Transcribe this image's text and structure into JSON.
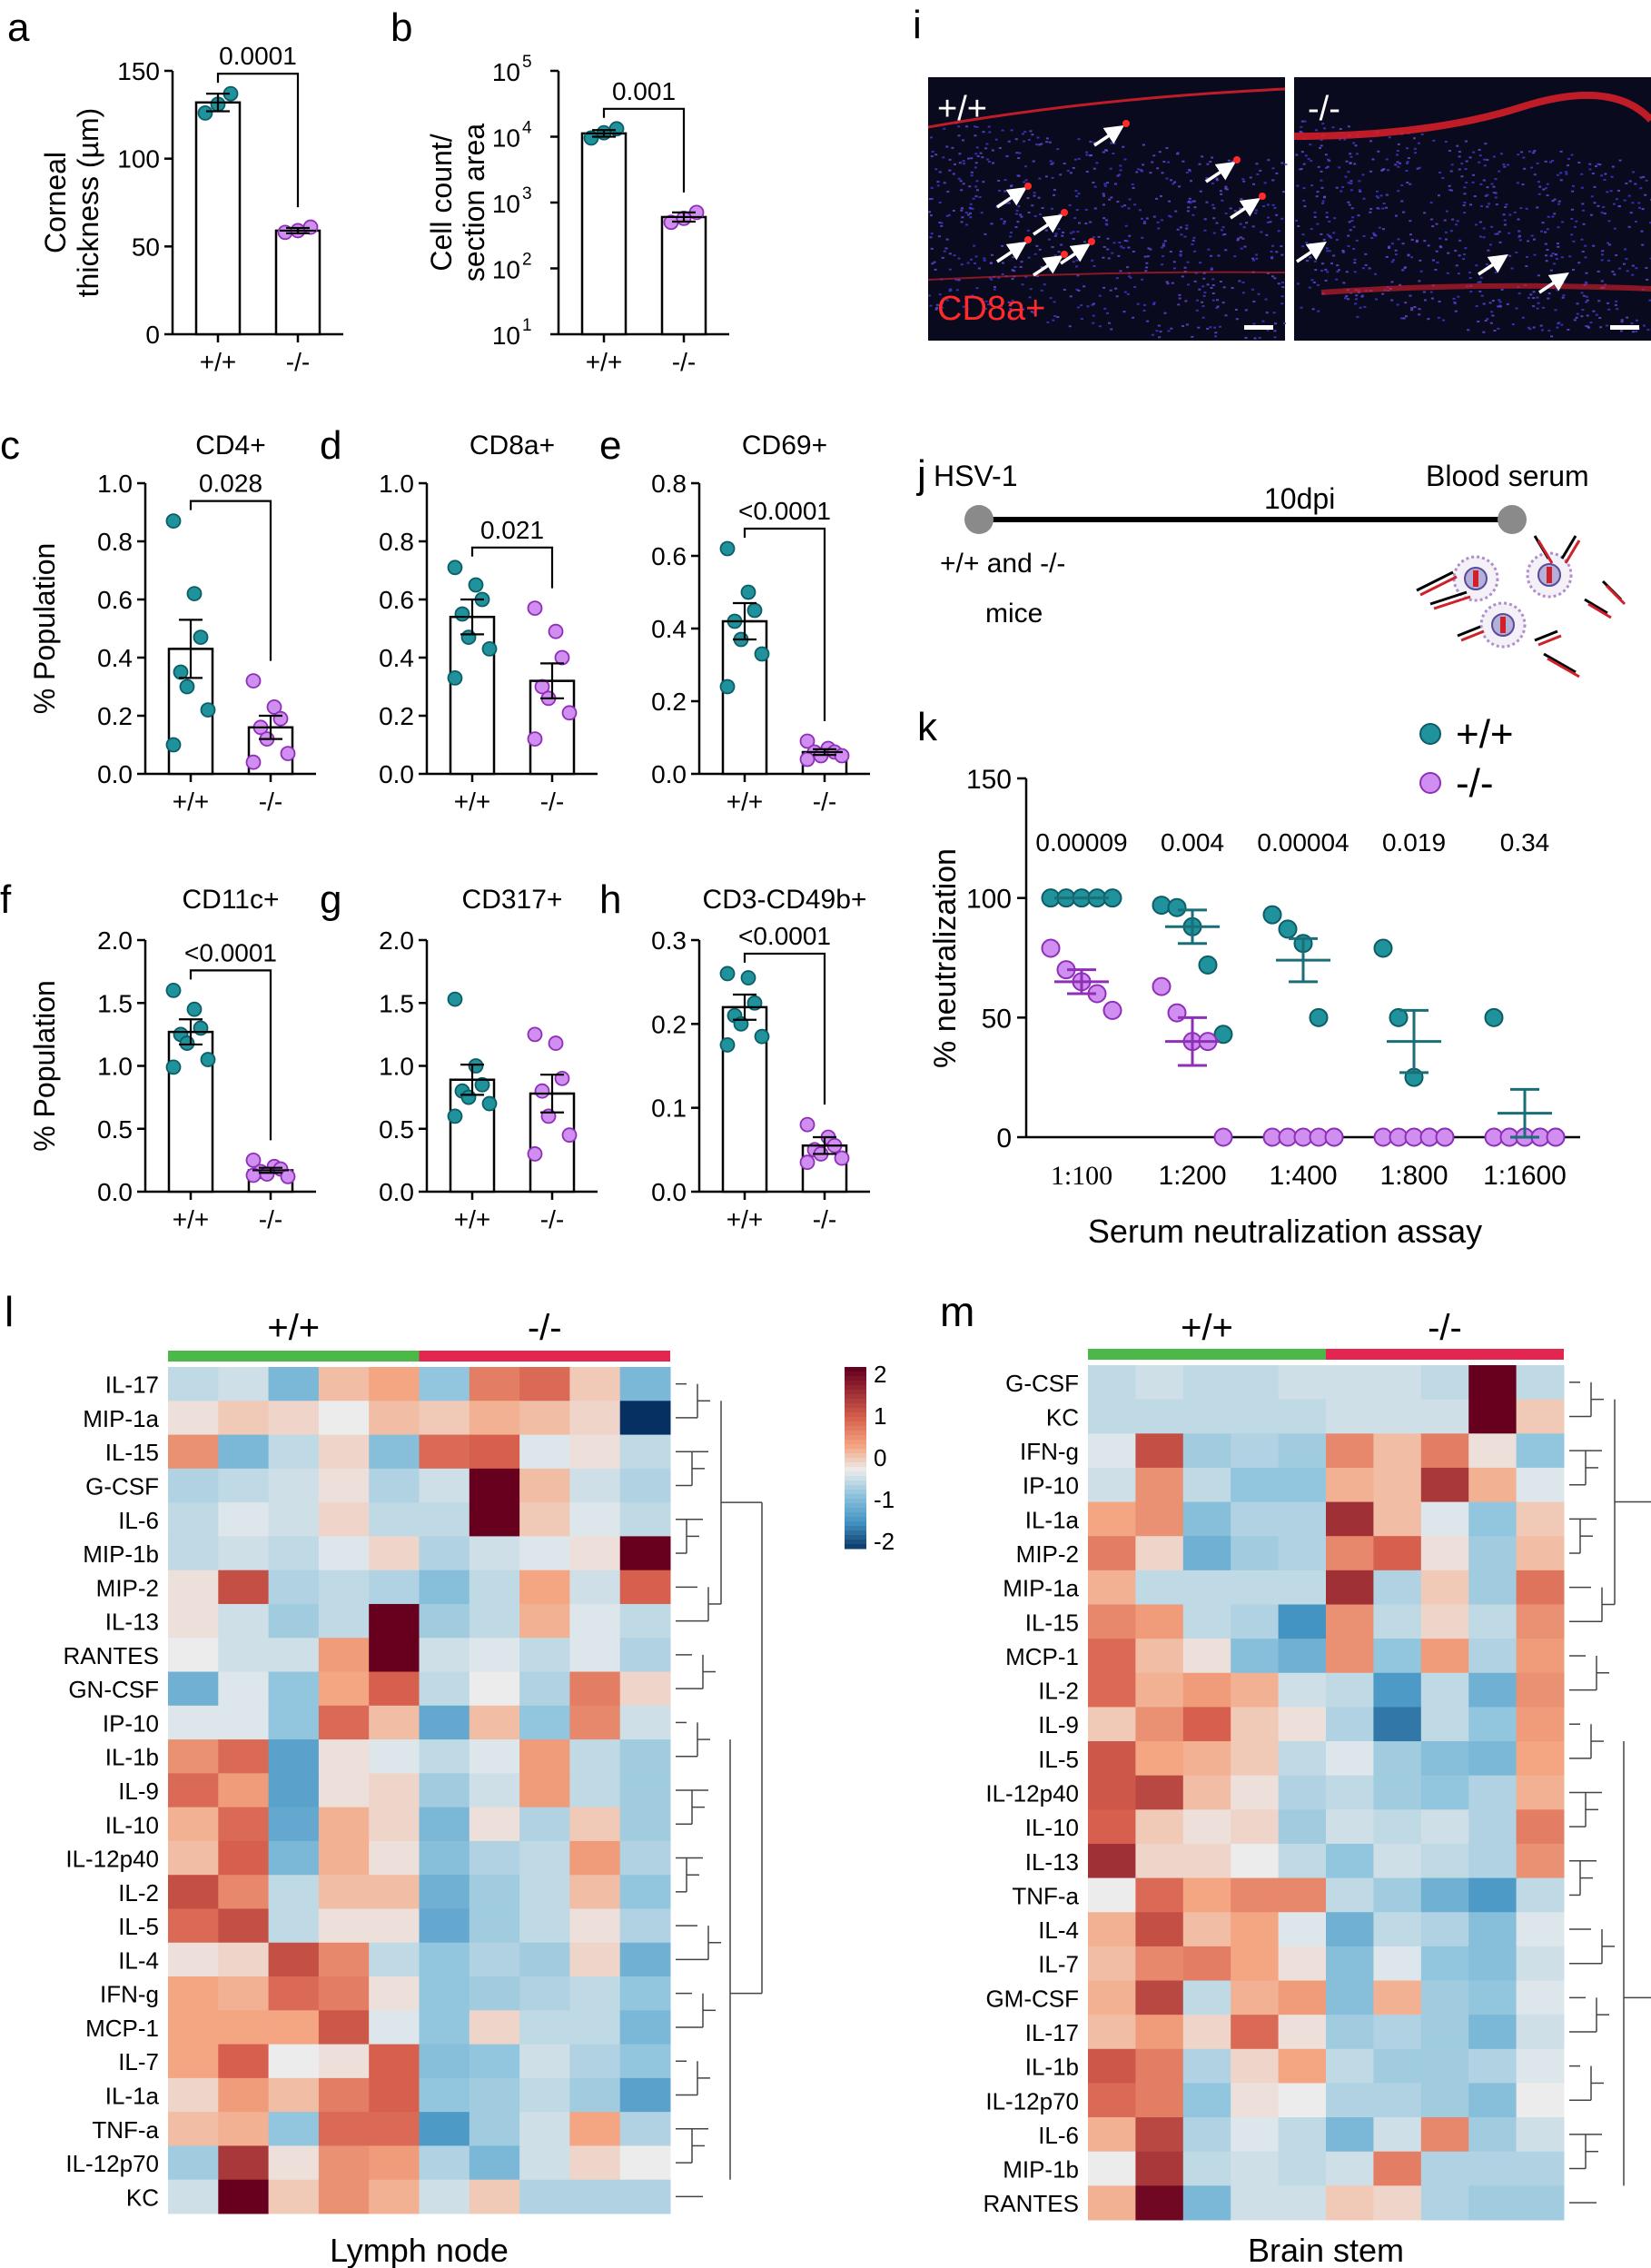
{
  "colors": {
    "wt": "#20929c",
    "wt_edge": "#0d5d66",
    "ko": "#cf8ef0",
    "ko_edge": "#8f2fb8",
    "green_bar": "#4cb848",
    "red_bar": "#e3264f"
  },
  "bar_panels": [
    {
      "letter": "a",
      "title": "",
      "ylabel": [
        "Corneal",
        "thickness (µm)"
      ],
      "ylim": [
        0,
        150
      ],
      "yticks": [
        "0",
        "50",
        "100",
        "150"
      ],
      "log": false,
      "categories": [
        "+/+",
        "-/-"
      ],
      "means": [
        132,
        59
      ],
      "sem": [
        5,
        1.5
      ],
      "points": [
        [
          126,
          131,
          137
        ],
        [
          58,
          59,
          61
        ]
      ],
      "p": "0.0001"
    },
    {
      "letter": "b",
      "title": "",
      "ylabel": [
        "Cell count/",
        "section area"
      ],
      "ylim": [
        1,
        5
      ],
      "yticks": [
        "10",
        "10",
        "10",
        "10",
        "10"
      ],
      "ytick_exp": [
        "1",
        "2",
        "3",
        "4",
        "5"
      ],
      "log": true,
      "categories": [
        "+/+",
        "-/-"
      ],
      "means": [
        4.05,
        2.78
      ],
      "sem": [
        0.05,
        0.07
      ],
      "points": [
        [
          3.98,
          4.06,
          4.12
        ],
        [
          2.7,
          2.76,
          2.85
        ]
      ],
      "p": "0.001"
    },
    {
      "letter": "c",
      "title": "CD4+",
      "ylabel": [
        "% Population"
      ],
      "ylim": [
        0,
        1.0
      ],
      "yticks": [
        "0.0",
        "0.2",
        "0.4",
        "0.6",
        "0.8",
        "1.0"
      ],
      "log": false,
      "categories": [
        "+/+",
        "-/-"
      ],
      "means": [
        0.43,
        0.16
      ],
      "sem": [
        0.1,
        0.04
      ],
      "points": [
        [
          0.87,
          0.62,
          0.47,
          0.35,
          0.3,
          0.22,
          0.1
        ],
        [
          0.32,
          0.23,
          0.19,
          0.16,
          0.12,
          0.07,
          0.04
        ]
      ],
      "p": "0.028"
    },
    {
      "letter": "d",
      "title": "CD8a+",
      "ylabel": [],
      "ylim": [
        0,
        1.0
      ],
      "yticks": [
        "0.0",
        "0.2",
        "0.4",
        "0.6",
        "0.8",
        "1.0"
      ],
      "log": false,
      "categories": [
        "+/+",
        "-/-"
      ],
      "means": [
        0.54,
        0.32
      ],
      "sem": [
        0.06,
        0.06
      ],
      "points": [
        [
          0.71,
          0.65,
          0.6,
          0.55,
          0.47,
          0.43,
          0.33
        ],
        [
          0.57,
          0.49,
          0.4,
          0.3,
          0.26,
          0.21,
          0.12
        ]
      ],
      "p": "0.021"
    },
    {
      "letter": "e",
      "title": "CD69+",
      "ylabel": [],
      "ylim": [
        0,
        0.8
      ],
      "yticks": [
        "0.0",
        "0.2",
        "0.4",
        "0.6",
        "0.8"
      ],
      "log": false,
      "categories": [
        "+/+",
        "-/-"
      ],
      "means": [
        0.42,
        0.06
      ],
      "sem": [
        0.05,
        0.008
      ],
      "points": [
        [
          0.62,
          0.5,
          0.45,
          0.42,
          0.37,
          0.33,
          0.24
        ],
        [
          0.09,
          0.07,
          0.06,
          0.06,
          0.05,
          0.05,
          0.04
        ]
      ],
      "p": "<0.0001"
    },
    {
      "letter": "f",
      "title": "CD11c+",
      "ylabel": [
        "% Population"
      ],
      "ylim": [
        0,
        2.0
      ],
      "yticks": [
        "0.0",
        "0.5",
        "1.0",
        "1.5",
        "2.0"
      ],
      "log": false,
      "categories": [
        "+/+",
        "-/-"
      ],
      "means": [
        1.27,
        0.17
      ],
      "sem": [
        0.1,
        0.02
      ],
      "points": [
        [
          1.6,
          1.45,
          1.3,
          1.25,
          1.18,
          1.05,
          0.99
        ],
        [
          0.25,
          0.2,
          0.18,
          0.16,
          0.14,
          0.12,
          0.13
        ]
      ],
      "p": "<0.0001"
    },
    {
      "letter": "g",
      "title": "CD317+",
      "ylabel": [],
      "ylim": [
        0,
        2.0
      ],
      "yticks": [
        "0.0",
        "0.5",
        "1.0",
        "1.5",
        "2.0"
      ],
      "log": false,
      "categories": [
        "+/+",
        "-/-"
      ],
      "means": [
        0.89,
        0.78
      ],
      "sem": [
        0.12,
        0.15
      ],
      "points": [
        [
          1.53,
          1.0,
          0.85,
          0.8,
          0.75,
          0.7,
          0.6
        ],
        [
          1.25,
          1.18,
          0.9,
          0.8,
          0.6,
          0.45,
          0.3
        ]
      ],
      "p": ""
    },
    {
      "letter": "h",
      "title": "CD3-CD49b+",
      "ylabel": [],
      "ylim": [
        0,
        0.3
      ],
      "yticks": [
        "0.0",
        "0.1",
        "0.2",
        "0.3"
      ],
      "log": false,
      "categories": [
        "+/+",
        "-/-"
      ],
      "means": [
        0.22,
        0.055
      ],
      "sem": [
        0.015,
        0.01
      ],
      "points": [
        [
          0.26,
          0.255,
          0.225,
          0.21,
          0.2,
          0.185,
          0.175
        ],
        [
          0.08,
          0.065,
          0.055,
          0.05,
          0.045,
          0.04,
          0.035
        ]
      ],
      "p": "<0.0001"
    }
  ],
  "panel_i": {
    "letter": "i",
    "left_label": "+/+",
    "right_label": "-/-",
    "stain_label": "CD8a+"
  },
  "panel_j": {
    "letter": "j",
    "start": "HSV-1",
    "mid": "10dpi",
    "end": "Blood serum",
    "group1": "+/+ and -/-",
    "group2": "mice"
  },
  "chart_data": {
    "type": "scatter",
    "letter": "k",
    "title": "",
    "xlabel": "Serum neutralization assay",
    "ylabel": "% neutralization",
    "ylim": [
      0,
      150
    ],
    "yticks": [
      "0",
      "50",
      "100",
      "150"
    ],
    "categories": [
      "1:100",
      "1:200",
      "1:400",
      "1:800",
      "1:1600"
    ],
    "p_values": [
      "0.00009",
      "0.004",
      "0.00004",
      "0.019",
      "0.34"
    ],
    "legend": [
      "+/+",
      "-/-"
    ],
    "series": [
      {
        "name": "+/+",
        "means": [
          100,
          88,
          74,
          40,
          10
        ],
        "sem": [
          0,
          7,
          9,
          13,
          10
        ],
        "points": [
          [
            100,
            100,
            100,
            100,
            100
          ],
          [
            97,
            96,
            88,
            72,
            43
          ],
          [
            93,
            87,
            81,
            50,
            0
          ],
          [
            79,
            50,
            25,
            0,
            0
          ],
          [
            50,
            0,
            0,
            0,
            0
          ]
        ]
      },
      {
        "name": "-/-",
        "means": [
          65,
          40,
          0,
          0,
          0
        ],
        "sem": [
          5,
          10,
          0,
          0,
          0
        ],
        "points": [
          [
            79,
            70,
            65,
            60,
            53
          ],
          [
            63,
            52,
            40,
            40,
            0
          ],
          [
            0,
            0,
            0,
            0,
            0
          ],
          [
            0,
            0,
            0,
            0,
            0
          ],
          [
            0,
            0,
            0,
            0,
            0
          ]
        ]
      }
    ]
  },
  "heatmap_l": {
    "letter": "l",
    "group1": "+/+",
    "group2": "-/-",
    "xlabel": "Lymph node",
    "colorbar_ticks": [
      "2",
      "1",
      "0",
      "-1",
      "-2"
    ],
    "rows": [
      "IL-17",
      "MIP-1a",
      "IL-15",
      "G-CSF",
      "IL-6",
      "MIP-1b",
      "MIP-2",
      "IL-13",
      "RANTES",
      "GN-CSF",
      "IP-10",
      "IL-1b",
      "IL-9",
      "IL-10",
      "IL-12p40",
      "IL-2",
      "IL-5",
      "IL-4",
      "IFN-g",
      "MCP-1",
      "IL-7",
      "IL-1a",
      "TNF-a",
      "IL-12p70",
      "KC"
    ],
    "values": [
      [
        -0.3,
        -0.2,
        -0.8,
        0.4,
        0.6,
        -0.6,
        1.0,
        1.2,
        0.3,
        -0.8
      ],
      [
        0.1,
        0.3,
        0.2,
        0.0,
        0.4,
        0.3,
        0.5,
        0.4,
        0.2,
        -2.0
      ],
      [
        0.8,
        -0.8,
        -0.3,
        0.2,
        -0.7,
        1.2,
        1.3,
        -0.1,
        0.1,
        -0.3
      ],
      [
        -0.4,
        -0.3,
        -0.2,
        0.1,
        -0.4,
        -0.2,
        2.5,
        0.4,
        -0.2,
        -0.4
      ],
      [
        -0.3,
        -0.1,
        -0.2,
        0.2,
        -0.3,
        -0.3,
        2.5,
        0.3,
        -0.1,
        -0.3
      ],
      [
        -0.3,
        -0.2,
        -0.3,
        -0.1,
        0.2,
        -0.4,
        -0.2,
        -0.1,
        0.1,
        2.5
      ],
      [
        0.1,
        1.5,
        -0.4,
        -0.3,
        -0.4,
        -0.7,
        -0.3,
        0.6,
        -0.2,
        1.3
      ],
      [
        0.1,
        -0.2,
        -0.5,
        -0.3,
        2.5,
        -0.5,
        -0.3,
        0.5,
        -0.1,
        -0.3
      ],
      [
        0.0,
        -0.2,
        -0.2,
        0.7,
        2.5,
        -0.2,
        -0.1,
        -0.3,
        -0.1,
        -0.4
      ],
      [
        -0.9,
        -0.1,
        -0.6,
        0.6,
        1.3,
        -0.3,
        0.0,
        -0.4,
        1.0,
        0.2
      ],
      [
        -0.1,
        -0.1,
        -0.6,
        1.2,
        0.4,
        -1.0,
        0.4,
        -0.6,
        0.9,
        -0.2
      ],
      [
        0.8,
        1.2,
        -1.1,
        0.1,
        -0.1,
        -0.3,
        -0.1,
        0.7,
        -0.3,
        -0.5
      ],
      [
        1.2,
        0.7,
        -1.1,
        0.1,
        0.2,
        -0.5,
        -0.2,
        0.7,
        -0.3,
        -0.5
      ],
      [
        0.5,
        1.2,
        -1.0,
        0.5,
        0.2,
        -0.8,
        0.1,
        -0.4,
        0.3,
        -0.5
      ],
      [
        0.4,
        1.3,
        -0.8,
        0.5,
        0.1,
        -0.7,
        -0.4,
        -0.3,
        0.7,
        -0.4
      ],
      [
        1.5,
        0.9,
        -0.3,
        0.4,
        0.4,
        -0.9,
        -0.5,
        -0.3,
        0.4,
        -0.6
      ],
      [
        1.2,
        1.5,
        -0.3,
        0.1,
        0.1,
        -1.0,
        -0.5,
        -0.3,
        0.1,
        -0.4
      ],
      [
        0.1,
        0.2,
        1.5,
        0.9,
        -0.3,
        -0.6,
        -0.4,
        -0.5,
        0.2,
        -0.9
      ],
      [
        0.6,
        0.5,
        1.2,
        1.0,
        0.1,
        -0.6,
        -0.5,
        -0.4,
        -0.3,
        -0.6
      ],
      [
        0.6,
        0.6,
        0.6,
        1.4,
        -0.1,
        -0.6,
        0.2,
        -0.3,
        -0.3,
        -0.8
      ],
      [
        0.6,
        1.3,
        0.0,
        0.1,
        1.3,
        -0.7,
        -0.6,
        -0.2,
        -0.4,
        -0.6
      ],
      [
        0.2,
        0.7,
        0.4,
        1.0,
        1.3,
        -0.6,
        -0.5,
        -0.3,
        -0.5,
        -1.1
      ],
      [
        0.4,
        0.5,
        -0.6,
        1.2,
        1.2,
        -1.2,
        -0.5,
        -0.2,
        0.6,
        -0.4
      ],
      [
        -0.5,
        1.8,
        0.1,
        0.8,
        0.7,
        -0.4,
        -0.8,
        -0.2,
        0.2,
        0.0
      ],
      [
        -0.2,
        2.5,
        0.3,
        0.8,
        0.5,
        -0.2,
        0.3,
        -0.4,
        -0.4,
        -0.4
      ]
    ]
  },
  "heatmap_m": {
    "letter": "m",
    "group1": "+/+",
    "group2": "-/-",
    "xlabel": "Brain stem",
    "rows": [
      "G-CSF",
      "KC",
      "IFN-g",
      "IP-10",
      "IL-1a",
      "MIP-2",
      "MIP-1a",
      "IL-15",
      "MCP-1",
      "IL-2",
      "IL-9",
      "IL-5",
      "IL-12p40",
      "IL-10",
      "IL-13",
      "TNF-a",
      "IL-4",
      "IL-7",
      "GM-CSF",
      "IL-17",
      "IL-1b",
      "IL-12p70",
      "IL-6",
      "MIP-1b",
      "RANTES"
    ],
    "values": [
      [
        -0.3,
        -0.2,
        -0.3,
        -0.3,
        -0.2,
        -0.2,
        -0.2,
        -0.3,
        2.5,
        -0.3
      ],
      [
        -0.3,
        -0.3,
        -0.3,
        -0.3,
        -0.3,
        -0.2,
        -0.2,
        -0.2,
        2.5,
        0.3
      ],
      [
        -0.1,
        1.5,
        -0.5,
        -0.4,
        -0.5,
        0.9,
        0.4,
        1.0,
        0.1,
        -0.6
      ],
      [
        -0.2,
        0.8,
        -0.3,
        -0.6,
        -0.6,
        0.5,
        0.4,
        1.8,
        0.5,
        -0.1
      ],
      [
        0.6,
        0.8,
        -0.7,
        -0.4,
        -0.4,
        1.9,
        0.4,
        -0.1,
        -0.6,
        0.3
      ],
      [
        1.0,
        0.2,
        -0.9,
        -0.5,
        -0.4,
        0.9,
        1.3,
        0.1,
        -0.5,
        0.4
      ],
      [
        0.5,
        -0.3,
        -0.3,
        -0.3,
        -0.3,
        1.9,
        -0.4,
        0.3,
        -0.5,
        1.1
      ],
      [
        0.9,
        0.7,
        -0.3,
        -0.4,
        -1.3,
        0.8,
        -0.3,
        0.2,
        -0.3,
        0.8
      ],
      [
        1.2,
        0.4,
        0.1,
        -0.7,
        -0.9,
        0.8,
        -0.6,
        0.7,
        -0.4,
        0.7
      ],
      [
        1.2,
        0.5,
        0.7,
        0.5,
        -0.2,
        -0.3,
        -1.2,
        -0.3,
        -0.9,
        0.8
      ],
      [
        0.3,
        0.8,
        1.3,
        0.3,
        0.1,
        -0.4,
        -1.5,
        -0.3,
        -0.6,
        0.7
      ],
      [
        1.4,
        0.6,
        0.5,
        0.3,
        -0.3,
        -0.1,
        -0.5,
        -0.7,
        -0.8,
        0.6
      ],
      [
        1.4,
        1.6,
        0.4,
        0.1,
        -0.4,
        -0.3,
        -0.5,
        -0.6,
        -0.4,
        0.5
      ],
      [
        1.3,
        0.3,
        0.1,
        0.2,
        -0.5,
        -0.2,
        -0.3,
        -0.2,
        -0.4,
        1.0
      ],
      [
        1.9,
        0.2,
        0.2,
        0.0,
        -0.3,
        -0.6,
        -0.2,
        -0.3,
        -0.4,
        0.8
      ],
      [
        0.0,
        1.2,
        0.6,
        0.9,
        0.9,
        -0.3,
        -0.5,
        -0.9,
        -1.2,
        -0.3
      ],
      [
        0.5,
        1.5,
        0.4,
        0.6,
        -0.1,
        -0.9,
        -0.3,
        -0.4,
        -0.7,
        -0.1
      ],
      [
        0.4,
        0.9,
        1.0,
        0.6,
        0.1,
        -0.7,
        -0.1,
        -0.6,
        -0.7,
        -0.2
      ],
      [
        0.5,
        1.6,
        -0.3,
        0.5,
        0.7,
        -0.7,
        0.5,
        -0.5,
        -0.6,
        -0.1
      ],
      [
        0.4,
        0.7,
        0.2,
        1.2,
        0.1,
        -0.5,
        -0.4,
        -0.5,
        -0.8,
        -0.2
      ],
      [
        1.4,
        1.0,
        -0.4,
        0.2,
        0.6,
        -0.3,
        -0.5,
        -0.5,
        -0.4,
        -0.1
      ],
      [
        1.2,
        1.0,
        -0.6,
        0.1,
        0.0,
        -0.4,
        -0.4,
        -0.5,
        -0.7,
        0.0
      ],
      [
        0.5,
        1.6,
        -0.4,
        -0.1,
        -0.3,
        -0.8,
        -0.2,
        0.9,
        -0.5,
        -0.2
      ],
      [
        0.0,
        1.8,
        -0.3,
        -0.2,
        -0.3,
        -0.2,
        1.0,
        -0.4,
        -0.4,
        -0.4
      ],
      [
        0.5,
        2.4,
        -0.8,
        -0.2,
        -0.2,
        0.3,
        0.2,
        -0.4,
        -0.5,
        -0.5
      ]
    ]
  }
}
